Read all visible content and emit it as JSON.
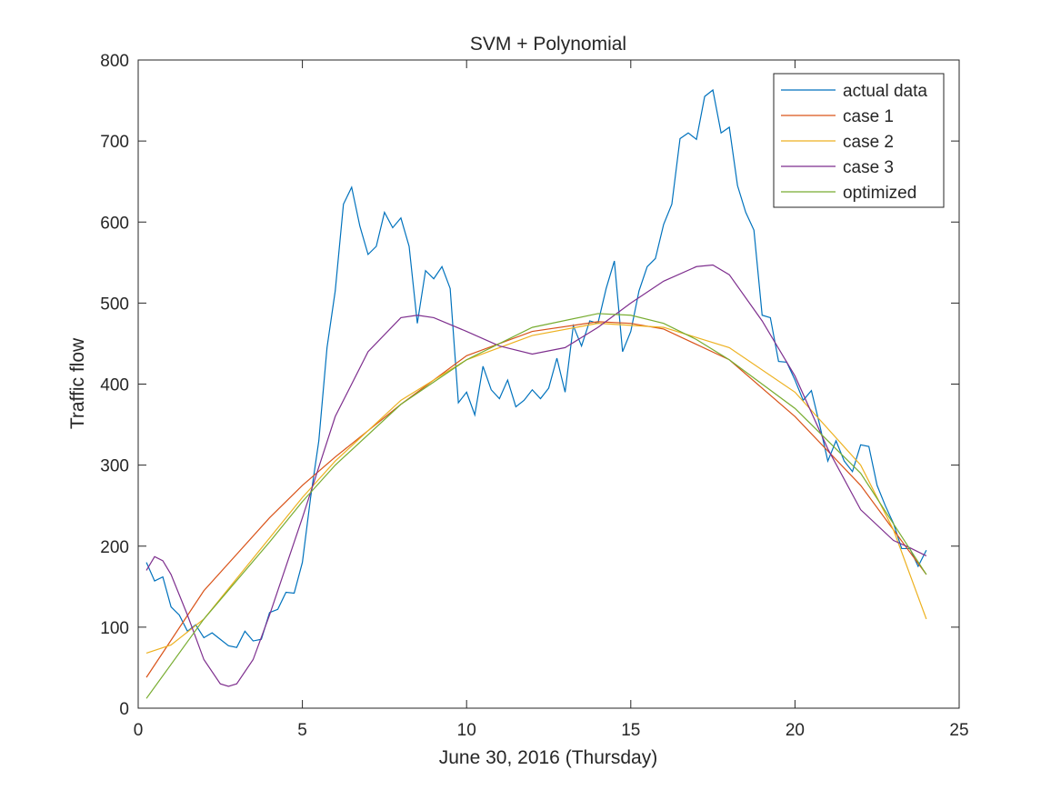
{
  "chart_data": {
    "type": "line",
    "title": "SVM + Polynomial",
    "xlabel": "June 30, 2016 (Thursday)",
    "ylabel": "Traffic flow",
    "xlim": [
      0,
      25
    ],
    "xticks": [
      0,
      5,
      10,
      15,
      20,
      25
    ],
    "ylim": [
      0,
      800
    ],
    "yticks": [
      0,
      100,
      200,
      300,
      400,
      500,
      600,
      700,
      800
    ],
    "grid": false,
    "legend": "upper right",
    "series": [
      {
        "name": "actual data",
        "color": "#0072BD",
        "x": [
          0.25,
          0.5,
          0.75,
          1,
          1.25,
          1.5,
          1.75,
          2,
          2.25,
          2.5,
          2.75,
          3,
          3.25,
          3.5,
          3.75,
          4,
          4.25,
          4.5,
          4.75,
          5,
          5.25,
          5.5,
          5.75,
          6,
          6.25,
          6.5,
          6.75,
          7,
          7.25,
          7.5,
          7.75,
          8,
          8.25,
          8.5,
          8.75,
          9,
          9.25,
          9.5,
          9.75,
          10,
          10.25,
          10.5,
          10.75,
          11,
          11.25,
          11.5,
          11.75,
          12,
          12.25,
          12.5,
          12.75,
          13,
          13.25,
          13.5,
          13.75,
          14,
          14.25,
          14.5,
          14.75,
          15,
          15.25,
          15.5,
          15.75,
          16,
          16.25,
          16.5,
          16.75,
          17,
          17.25,
          17.5,
          17.75,
          18,
          18.25,
          18.5,
          18.75,
          19,
          19.25,
          19.5,
          19.75,
          20,
          20.25,
          20.5,
          20.75,
          21,
          21.25,
          21.5,
          21.75,
          22,
          22.25,
          22.5,
          22.75,
          23,
          23.25,
          23.5,
          23.75,
          24
        ],
        "values": [
          180,
          157,
          162,
          125,
          115,
          95,
          103,
          87,
          93,
          85,
          77,
          75,
          95,
          83,
          85,
          118,
          122,
          143,
          142,
          180,
          260,
          330,
          445,
          515,
          622,
          643,
          595,
          560,
          570,
          612,
          593,
          605,
          570,
          475,
          540,
          530,
          545,
          518,
          377,
          390,
          362,
          422,
          393,
          382,
          405,
          372,
          380,
          393,
          382,
          395,
          432,
          390,
          472,
          447,
          478,
          475,
          518,
          552,
          440,
          465,
          515,
          545,
          555,
          597,
          622,
          703,
          710,
          702,
          755,
          763,
          710,
          717,
          645,
          612,
          590,
          485,
          482,
          428,
          427,
          405,
          380,
          392,
          350,
          305,
          330,
          305,
          292,
          325,
          323,
          275,
          250,
          228,
          197,
          197,
          175,
          195
        ]
      },
      {
        "name": "case 1",
        "color": "#D95319",
        "x": [
          0.25,
          2,
          4,
          5,
          6,
          8,
          10,
          12,
          14,
          15,
          16,
          18,
          20,
          22,
          24
        ],
        "values": [
          38,
          145,
          235,
          275,
          310,
          375,
          435,
          465,
          477,
          475,
          468,
          430,
          360,
          275,
          165
        ]
      },
      {
        "name": "case 2",
        "color": "#EDB120",
        "x": [
          0.25,
          1,
          2,
          3,
          4,
          5,
          6,
          8,
          10,
          12,
          14,
          16,
          18,
          20,
          22,
          23,
          24
        ],
        "values": [
          68,
          78,
          110,
          160,
          210,
          260,
          305,
          380,
          430,
          460,
          475,
          470,
          445,
          390,
          300,
          220,
          110
        ]
      },
      {
        "name": "case 3",
        "color": "#7E2F8E",
        "x": [
          0.25,
          0.5,
          0.75,
          1,
          1.5,
          2,
          2.5,
          2.75,
          3,
          3.5,
          4,
          5,
          6,
          7,
          8,
          8.5,
          9,
          10,
          11,
          12,
          13,
          14,
          15,
          16,
          17,
          17.5,
          18,
          19,
          20,
          21,
          22,
          23,
          23.5,
          24
        ],
        "values": [
          170,
          187,
          182,
          165,
          115,
          60,
          30,
          27,
          30,
          60,
          115,
          235,
          360,
          440,
          482,
          485,
          482,
          465,
          447,
          437,
          445,
          470,
          500,
          527,
          545,
          547,
          535,
          478,
          410,
          320,
          245,
          207,
          198,
          188
        ]
      },
      {
        "name": "optimized",
        "color": "#77AC30",
        "x": [
          0.25,
          2,
          4,
          5,
          6,
          8,
          10,
          12,
          14,
          15,
          16,
          17,
          18,
          20,
          22,
          24
        ],
        "values": [
          12,
          110,
          205,
          255,
          300,
          375,
          430,
          470,
          487,
          485,
          475,
          455,
          430,
          370,
          290,
          165
        ]
      }
    ]
  }
}
